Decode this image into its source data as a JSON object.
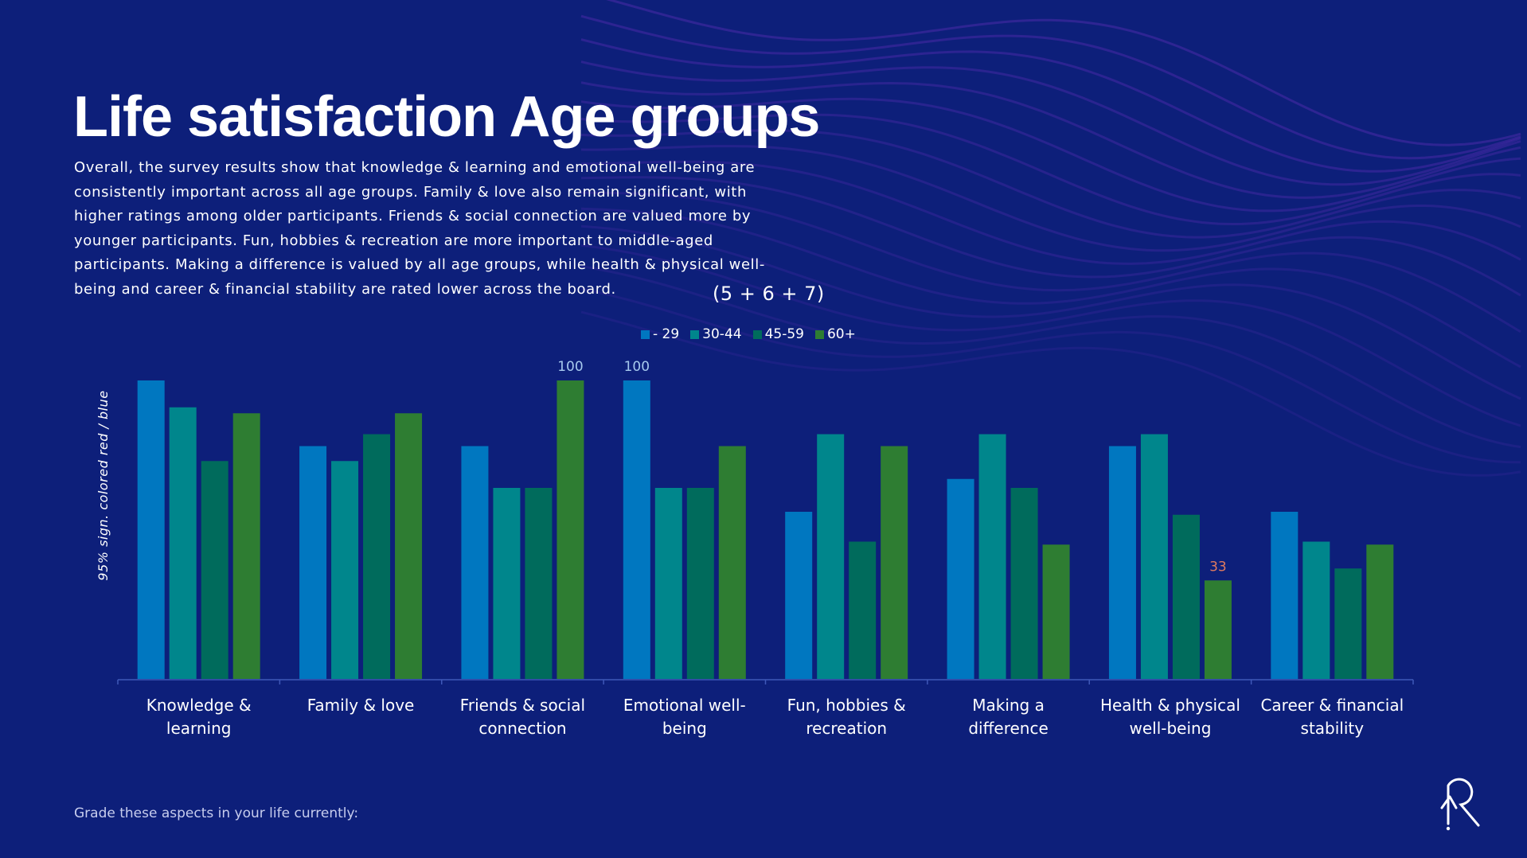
{
  "page": {
    "title": "Life satisfaction Age groups",
    "intro": "Overall, the survey results show that knowledge & learning and emotional well-being are consistently important across all age groups. Family & love also remain significant, with higher ratings among older participants. Friends & social connection are valued more by younger participants. Fun, hobbies & recreation are more important to middle-aged participants. Making a difference is valued by all age groups, while health & physical well-being and career & financial stability are rated lower across the board.",
    "note": "(5 + 6 + 7)",
    "footer": "Grade these aspects in your life currently:"
  },
  "colors": {
    "background": "#0d1f7a",
    "series": [
      "#0077c0",
      "#00868c",
      "#006b5c",
      "#2e7d32"
    ],
    "highlight_blue": "#a7c9ee",
    "highlight_red": "#e07a5f"
  },
  "chart_data": {
    "type": "bar",
    "ylabel": "95% sign. colored red / blue",
    "ylim": [
      0,
      100
    ],
    "grid": false,
    "legend_position": "top-center",
    "categories": [
      [
        "Knowledge &",
        "learning"
      ],
      [
        "Family & love"
      ],
      [
        "Friends & social",
        "connection"
      ],
      [
        "Emotional well-",
        "being"
      ],
      [
        "Fun, hobbies &",
        "recreation"
      ],
      [
        "Making a",
        "difference"
      ],
      [
        "Health & physical",
        "well-being"
      ],
      [
        "Career & financial",
        "stability"
      ]
    ],
    "series": [
      {
        "name": "- 29",
        "values": [
          100,
          78,
          78,
          100,
          56,
          67,
          78,
          56
        ]
      },
      {
        "name": "30-44",
        "values": [
          91,
          73,
          64,
          64,
          82,
          82,
          82,
          46
        ]
      },
      {
        "name": "45-59",
        "values": [
          73,
          82,
          64,
          64,
          46,
          64,
          55,
          37
        ]
      },
      {
        "name": "60+",
        "values": [
          89,
          89,
          100,
          78,
          78,
          45,
          33,
          45
        ]
      }
    ],
    "labels": [
      {
        "series": 3,
        "category": 2,
        "text": "100",
        "color": "blue"
      },
      {
        "series": 0,
        "category": 3,
        "text": "100",
        "color": "blue"
      },
      {
        "series": 3,
        "category": 6,
        "text": "33",
        "color": "red"
      }
    ]
  }
}
